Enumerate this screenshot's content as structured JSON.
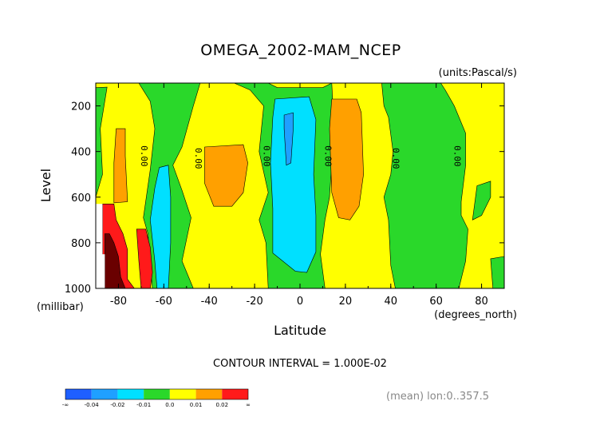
{
  "chart_data": {
    "type": "heatmap",
    "title": "OMEGA_2002-MAM_NCEP",
    "units_label": "(units:Pascal/s)",
    "xlabel": "Latitude",
    "ylabel": "Level",
    "x_unit_label": "(degrees_north)",
    "y_unit_label": "(millibar)",
    "xlim": [
      -90,
      90
    ],
    "ylim": [
      1000,
      100
    ],
    "x_ticks": [
      "-80",
      "-60",
      "-40",
      "-20",
      "0",
      "20",
      "40",
      "60",
      "80"
    ],
    "x_tick_values": [
      -80,
      -60,
      -40,
      -20,
      0,
      20,
      40,
      60,
      80
    ],
    "y_ticks": [
      "200",
      "400",
      "600",
      "800",
      "1000"
    ],
    "y_tick_values": [
      200,
      400,
      600,
      800,
      1000
    ],
    "contour_interval_text": "CONTOUR INTERVAL = 1.000E-02",
    "footer_note": "(mean) lon:0..357.5",
    "contour_labels": [
      {
        "text": "0.00",
        "lat": -70,
        "level": 420
      },
      {
        "text": "0.00",
        "lat": -46,
        "level": 430
      },
      {
        "text": "0.00",
        "lat": -16,
        "level": 420
      },
      {
        "text": "0.00",
        "lat": 11,
        "level": 420
      },
      {
        "text": "0.00",
        "lat": 41,
        "level": 430
      },
      {
        "text": "0.00",
        "lat": 68,
        "level": 420
      }
    ],
    "legend": {
      "labels": [
        "-∞",
        "-0.04",
        "-0.02",
        "-0.01",
        "0.0",
        "0.01",
        "0.02",
        "∞"
      ],
      "colors": [
        "#1e5fff",
        "#1fa0ff",
        "#00e0ff",
        "#2ad82a",
        "#ffff00",
        "#ffa000",
        "#ff1a1a"
      ]
    },
    "regions": [
      {
        "name": "background-positive",
        "color": "#ffff00",
        "points": [
          [
            -90,
            100
          ],
          [
            90,
            100
          ],
          [
            90,
            1000
          ],
          [
            -90,
            1000
          ]
        ]
      },
      {
        "name": "green-polar-south",
        "color": "#2ad82a",
        "points": [
          [
            -90,
            120
          ],
          [
            -85,
            118
          ],
          [
            -88,
            300
          ],
          [
            -87,
            500
          ],
          [
            -90,
            600
          ]
        ]
      },
      {
        "name": "green-midlat-south",
        "color": "#2ad82a",
        "points": [
          [
            -71,
            100
          ],
          [
            -44,
            100
          ],
          [
            -47,
            200
          ],
          [
            -52,
            380
          ],
          [
            -56,
            460
          ],
          [
            -52,
            570
          ],
          [
            -48,
            690
          ],
          [
            -52,
            880
          ],
          [
            -47,
            1000
          ],
          [
            -65,
            1000
          ],
          [
            -66,
            890
          ],
          [
            -67,
            760
          ],
          [
            -69,
            690
          ],
          [
            -66,
            480
          ],
          [
            -64,
            300
          ],
          [
            -66,
            180
          ]
        ]
      },
      {
        "name": "cyan-midlat-south",
        "color": "#00e0ff",
        "points": [
          [
            -62,
            470
          ],
          [
            -58,
            460
          ],
          [
            -57,
            600
          ],
          [
            -57,
            800
          ],
          [
            -58,
            1000
          ],
          [
            -63,
            1000
          ],
          [
            -64,
            880
          ],
          [
            -66,
            700
          ],
          [
            -64,
            560
          ]
        ]
      },
      {
        "name": "green-tropics",
        "color": "#2ad82a",
        "points": [
          [
            -29,
            100
          ],
          [
            -14,
            100
          ],
          [
            -10,
            120
          ],
          [
            10,
            120
          ],
          [
            14,
            100
          ],
          [
            15,
            300
          ],
          [
            13,
            600
          ],
          [
            11,
            700
          ],
          [
            9,
            850
          ],
          [
            11,
            1000
          ],
          [
            -14,
            1000
          ],
          [
            -15,
            800
          ],
          [
            -18,
            700
          ],
          [
            -14,
            580
          ],
          [
            -18,
            400
          ],
          [
            -16,
            200
          ],
          [
            -22,
            130
          ]
        ]
      },
      {
        "name": "cyan-tropics",
        "color": "#00e0ff",
        "points": [
          [
            -11,
            170
          ],
          [
            4,
            160
          ],
          [
            7,
            260
          ],
          [
            6,
            500
          ],
          [
            7,
            680
          ],
          [
            7,
            840
          ],
          [
            3,
            930
          ],
          [
            -2,
            925
          ],
          [
            -12,
            845
          ],
          [
            -12,
            650
          ],
          [
            -13,
            450
          ],
          [
            -12,
            250
          ]
        ]
      },
      {
        "name": "blue-tropics",
        "color": "#1fa0ff",
        "points": [
          [
            -7,
            240
          ],
          [
            -3,
            230
          ],
          [
            -3,
            300
          ],
          [
            -4,
            450
          ],
          [
            -6,
            460
          ],
          [
            -7,
            300
          ]
        ]
      },
      {
        "name": "green-midlat-north",
        "color": "#2ad82a",
        "points": [
          [
            36,
            100
          ],
          [
            62,
            100
          ],
          [
            64,
            130
          ],
          [
            68,
            200
          ],
          [
            73,
            320
          ],
          [
            73,
            460
          ],
          [
            71,
            620
          ],
          [
            71,
            680
          ],
          [
            74,
            740
          ],
          [
            73,
            880
          ],
          [
            70,
            1000
          ],
          [
            42,
            1000
          ],
          [
            40,
            900
          ],
          [
            39,
            700
          ],
          [
            37,
            600
          ],
          [
            40,
            500
          ],
          [
            41,
            400
          ],
          [
            39,
            250
          ],
          [
            37,
            200
          ]
        ]
      },
      {
        "name": "green-polar-north",
        "color": "#2ad82a",
        "points": [
          [
            78,
            550
          ],
          [
            84,
            530
          ],
          [
            84,
            600
          ],
          [
            80,
            680
          ],
          [
            76,
            700
          ]
        ]
      },
      {
        "name": "green-polar-north-surface",
        "color": "#2ad82a",
        "points": [
          [
            84,
            870
          ],
          [
            90,
            860
          ],
          [
            90,
            1000
          ],
          [
            85,
            1000
          ]
        ]
      },
      {
        "name": "orange-south-1",
        "color": "#ffa000",
        "points": [
          [
            -81,
            300
          ],
          [
            -77,
            300
          ],
          [
            -77,
            420
          ],
          [
            -76,
            620
          ],
          [
            -82,
            625
          ],
          [
            -82,
            450
          ]
        ]
      },
      {
        "name": "orange-south-2",
        "color": "#ffa000",
        "points": [
          [
            -42,
            380
          ],
          [
            -25,
            370
          ],
          [
            -23,
            450
          ],
          [
            -25,
            580
          ],
          [
            -30,
            640
          ],
          [
            -38,
            640
          ],
          [
            -42,
            540
          ]
        ]
      },
      {
        "name": "orange-north",
        "color": "#ffa000",
        "points": [
          [
            14,
            170
          ],
          [
            25,
            170
          ],
          [
            27,
            230
          ],
          [
            28,
            500
          ],
          [
            26,
            640
          ],
          [
            22,
            700
          ],
          [
            17,
            690
          ],
          [
            14,
            580
          ],
          [
            13,
            300
          ]
        ]
      },
      {
        "name": "red-south-pole",
        "color": "#ff1a1a",
        "points": [
          [
            -87,
            630
          ],
          [
            -82,
            630
          ],
          [
            -81,
            700
          ],
          [
            -78,
            760
          ],
          [
            -76,
            830
          ],
          [
            -76,
            960
          ],
          [
            -73,
            1000
          ],
          [
            -87,
            1000
          ]
        ]
      },
      {
        "name": "red-south-2",
        "color": "#ff1a1a",
        "points": [
          [
            -72,
            740
          ],
          [
            -68,
            740
          ],
          [
            -66,
            820
          ],
          [
            -65,
            930
          ],
          [
            -66,
            1000
          ],
          [
            -70,
            1000
          ],
          [
            -71,
            880
          ]
        ]
      },
      {
        "name": "darkred-south-pole",
        "color": "#6a0000",
        "points": [
          [
            -86,
            760
          ],
          [
            -84,
            760
          ],
          [
            -82,
            800
          ],
          [
            -80,
            860
          ],
          [
            -79,
            950
          ],
          [
            -77,
            1000
          ],
          [
            -86,
            1000
          ]
        ]
      },
      {
        "name": "white-masked-terrain",
        "color": "#ffffff",
        "points": [
          [
            -90,
            630
          ],
          [
            -87,
            630
          ],
          [
            -87,
            850
          ],
          [
            -86,
            850
          ],
          [
            -86,
            1000
          ],
          [
            -90,
            1000
          ]
        ]
      }
    ]
  }
}
